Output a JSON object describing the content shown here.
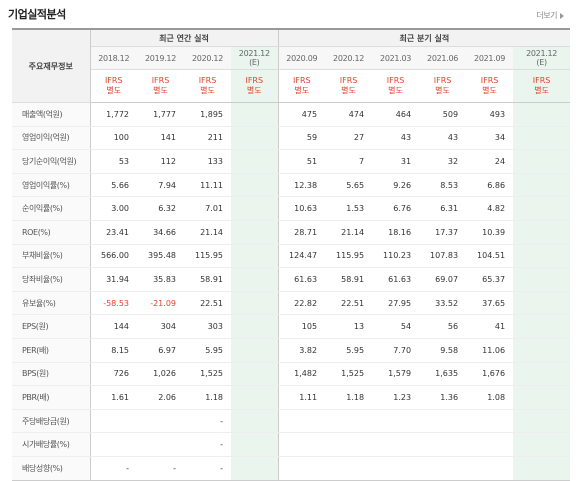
{
  "title": "기업실적분석",
  "more_label": "더보기",
  "row_header_label": "주요재무정보",
  "group_annual": "최근 연간 실적",
  "group_quarter": "최근 분기 실적",
  "periods": [
    "2018.12",
    "2019.12",
    "2020.12",
    "2021.12\n(E)",
    "2020.09",
    "2020.12",
    "2021.03",
    "2021.06",
    "2021.09",
    "2021.12\n(E)"
  ],
  "unit_label": "IFRS\n별도",
  "estimate_column_color": "#eaf5ee",
  "negative_color": "#e8412c",
  "rows": [
    {
      "label": "매출액(억원)",
      "values": [
        "1,772",
        "1,777",
        "1,895",
        "",
        "475",
        "474",
        "464",
        "509",
        "493",
        ""
      ]
    },
    {
      "label": "영업이익(억원)",
      "values": [
        "100",
        "141",
        "211",
        "",
        "59",
        "27",
        "43",
        "43",
        "34",
        ""
      ]
    },
    {
      "label": "당기순이익(억원)",
      "values": [
        "53",
        "112",
        "133",
        "",
        "51",
        "7",
        "31",
        "32",
        "24",
        ""
      ]
    },
    {
      "label": "영업이익률(%)",
      "values": [
        "5.66",
        "7.94",
        "11.11",
        "",
        "12.38",
        "5.65",
        "9.26",
        "8.53",
        "6.86",
        ""
      ]
    },
    {
      "label": "순이익률(%)",
      "values": [
        "3.00",
        "6.32",
        "7.01",
        "",
        "10.63",
        "1.53",
        "6.76",
        "6.31",
        "4.82",
        ""
      ]
    },
    {
      "label": "ROE(%)",
      "values": [
        "23.41",
        "34.66",
        "21.14",
        "",
        "28.71",
        "21.14",
        "18.16",
        "17.37",
        "10.39",
        ""
      ]
    },
    {
      "label": "부채비율(%)",
      "values": [
        "566.00",
        "395.48",
        "115.95",
        "",
        "124.47",
        "115.95",
        "110.23",
        "107.83",
        "104.51",
        ""
      ]
    },
    {
      "label": "당좌비율(%)",
      "values": [
        "31.94",
        "35.83",
        "58.91",
        "",
        "61.63",
        "58.91",
        "61.63",
        "69.07",
        "65.37",
        ""
      ]
    },
    {
      "label": "유보율(%)",
      "values": [
        "-58.53",
        "-21.09",
        "22.51",
        "",
        "22.82",
        "22.51",
        "27.95",
        "33.52",
        "37.65",
        ""
      ]
    },
    {
      "label": "EPS(원)",
      "values": [
        "144",
        "304",
        "303",
        "",
        "105",
        "13",
        "54",
        "56",
        "41",
        ""
      ]
    },
    {
      "label": "PER(배)",
      "values": [
        "8.15",
        "6.97",
        "5.95",
        "",
        "3.82",
        "5.95",
        "7.70",
        "9.58",
        "11.06",
        ""
      ]
    },
    {
      "label": "BPS(원)",
      "values": [
        "726",
        "1,026",
        "1,525",
        "",
        "1,482",
        "1,525",
        "1,579",
        "1,635",
        "1,676",
        ""
      ]
    },
    {
      "label": "PBR(배)",
      "values": [
        "1.61",
        "2.06",
        "1.18",
        "",
        "1.11",
        "1.18",
        "1.23",
        "1.36",
        "1.08",
        ""
      ]
    },
    {
      "label": "주당배당금(원)",
      "values": [
        "",
        "",
        "-",
        "",
        "",
        "",
        "",
        "",
        "",
        ""
      ]
    },
    {
      "label": "시가배당률(%)",
      "values": [
        "",
        "",
        "-",
        "",
        "",
        "",
        "",
        "",
        "",
        ""
      ]
    },
    {
      "label": "배당성향(%)",
      "values": [
        "-",
        "-",
        "-",
        "",
        "",
        "",
        "",
        "",
        "",
        ""
      ]
    }
  ]
}
